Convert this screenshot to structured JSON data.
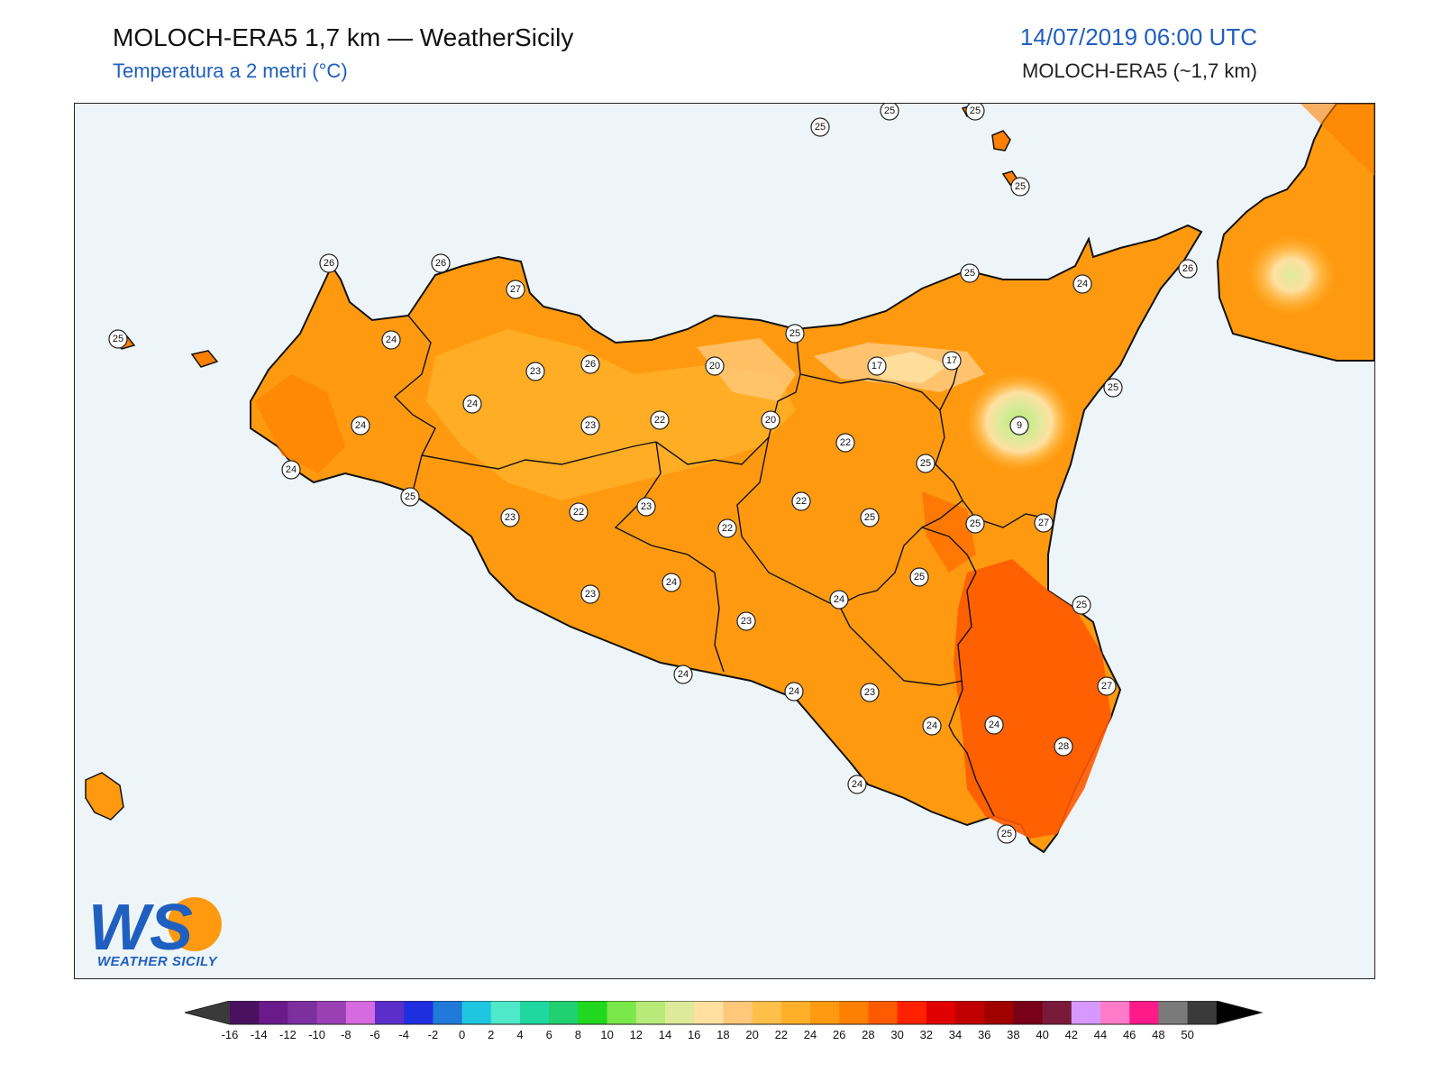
{
  "header": {
    "title": "MOLOCH-ERA5 1,7 km — WeatherSicily",
    "subtitle": "Temperatura a 2 metri (°C)",
    "datetime": "14/07/2019 06:00 UTC",
    "model": "MOLOCH-ERA5 (~1,7 km)"
  },
  "logo": {
    "text": "WEATHER SICILY",
    "letters": "WS"
  },
  "stations": [
    "25",
    "25",
    "25",
    "25",
    "26",
    "26",
    "27",
    "26",
    "25",
    "25",
    "24",
    "26",
    "24",
    "23",
    "20",
    "17",
    "17",
    "24",
    "24",
    "22",
    "23",
    "20",
    "22",
    "25",
    "24",
    "25",
    "9",
    "25",
    "22",
    "25",
    "25",
    "23",
    "22",
    "23",
    "22",
    "27",
    "25",
    "24",
    "23",
    "25",
    "24",
    "23",
    "25",
    "24",
    "24",
    "23",
    "24",
    "27",
    "24",
    "28",
    "24",
    "25"
  ],
  "colorbar": {
    "ticks": [
      "-16",
      "-14",
      "-12",
      "-10",
      "-8",
      "-6",
      "-4",
      "-2",
      "0",
      "2",
      "4",
      "6",
      "8",
      "10",
      "12",
      "14",
      "16",
      "18",
      "20",
      "22",
      "24",
      "26",
      "28",
      "30",
      "32",
      "34",
      "36",
      "38",
      "40",
      "42",
      "44",
      "46",
      "48",
      "50"
    ],
    "colors": [
      "#4a1160",
      "#6a1a8a",
      "#7d2fa0",
      "#9a40b5",
      "#d66ae0",
      "#5b2ec9",
      "#1f2fe0",
      "#1f7ad8",
      "#1fc6e0",
      "#4fe8c8",
      "#1fd8a0",
      "#1fd070",
      "#1fd81f",
      "#7ae84a",
      "#b8ea7a",
      "#dcea9a",
      "#ffe0a0",
      "#ffc87a",
      "#ffc04a",
      "#ffb028",
      "#ff9a10",
      "#ff8000",
      "#ff5a00",
      "#ff2000",
      "#e00000",
      "#c00000",
      "#a00000",
      "#780018",
      "#7a1a3a",
      "#d699ff",
      "#ff7ac8",
      "#ff1a8a",
      "#7a7a7a",
      "#3a3a3a"
    ],
    "min_color": "#3a3a3a",
    "max_color": "#000000"
  }
}
